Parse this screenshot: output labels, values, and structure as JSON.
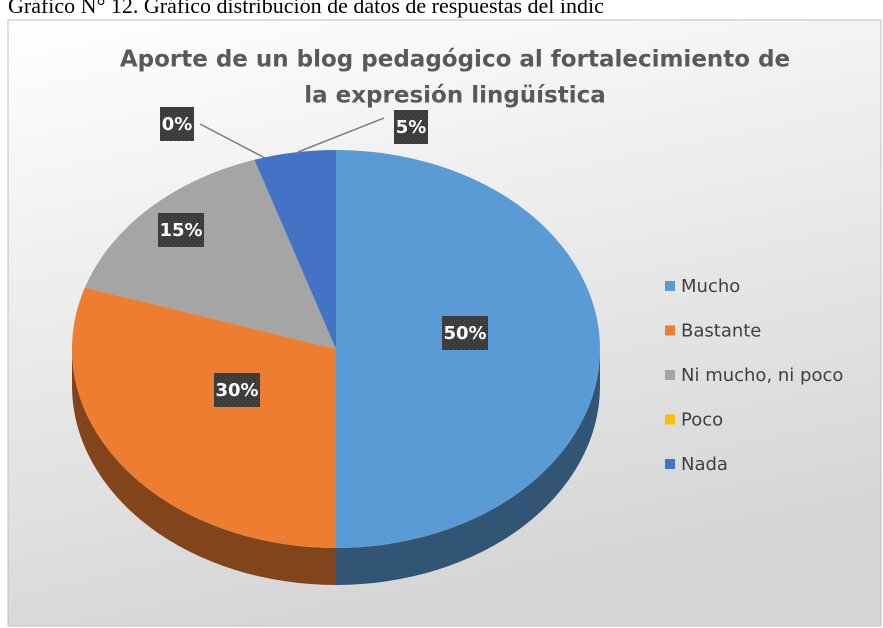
{
  "chart_data": {
    "type": "pie",
    "caption": "Gráfico N° 12. Gráfico distribución de datos de respuestas del indic",
    "title": [
      "Aporte de un blog pedagógico al fortalecimiento de",
      "la expresión lingüística"
    ],
    "categories": [
      "Mucho",
      "Bastante",
      "Ni mucho, ni poco",
      "Poco",
      "Nada"
    ],
    "values": [
      50,
      30,
      15,
      0,
      5
    ],
    "value_labels": [
      "50%",
      "30%",
      "15%",
      "0%",
      "5%"
    ],
    "colors": [
      "#5b9bd5",
      "#ed7d31",
      "#a5a5a5",
      "#ffc000",
      "#4472c4"
    ],
    "legend": "right"
  }
}
